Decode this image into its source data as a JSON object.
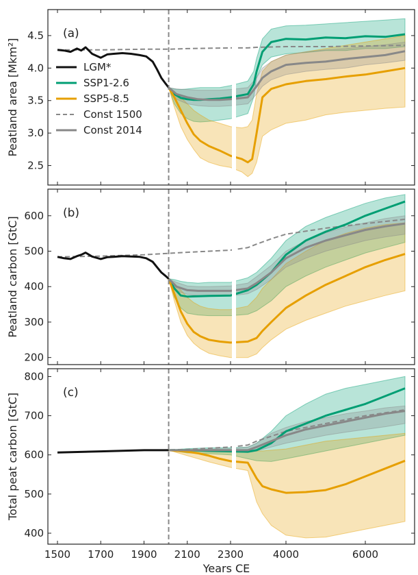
{
  "chart_data": [
    {
      "type": "line",
      "panel_label": "(a)",
      "ylabel": "Peatland area [Mkm²]",
      "ylim": [
        2.2,
        4.9
      ],
      "yticks": [
        2.5,
        3.0,
        3.5,
        4.0,
        4.5
      ],
      "ytick_labels": [
        "2.5",
        "3.0",
        "3.5",
        "4.0",
        "4.5"
      ],
      "legend": {
        "position": "left",
        "entries": [
          {
            "label": "LGM*",
            "color": "#111111",
            "style": "solid"
          },
          {
            "label": "SSP1-2.6",
            "color": "#009e73",
            "style": "solid"
          },
          {
            "label": "SSP5-8.5",
            "color": "#e69f00",
            "style": "solid"
          },
          {
            "label": "Const 1500",
            "color": "#888888",
            "style": "dashed"
          },
          {
            "label": "Const 2014",
            "color": "#888888",
            "style": "solid"
          }
        ]
      },
      "series": [
        {
          "name": "LGM*",
          "color": "#111111",
          "style": "solid",
          "x": [
            1500,
            1530,
            1560,
            1590,
            1610,
            1630,
            1660,
            1700,
            1730,
            1760,
            1800,
            1840,
            1880,
            1910,
            1940,
            1960,
            1980,
            2000,
            2014
          ],
          "y": [
            4.28,
            4.27,
            4.25,
            4.3,
            4.27,
            4.32,
            4.22,
            4.16,
            4.21,
            4.22,
            4.23,
            4.22,
            4.2,
            4.18,
            4.1,
            3.98,
            3.85,
            3.76,
            3.7
          ]
        },
        {
          "name": "Const 1500",
          "color": "#888888",
          "style": "dashed",
          "x": [
            1500,
            1700,
            1900,
            2014,
            2100,
            2300,
            2700,
            3000,
            4000,
            5000,
            6000,
            7000
          ],
          "y": [
            4.28,
            4.28,
            4.29,
            4.29,
            4.3,
            4.31,
            4.31,
            4.32,
            4.33,
            4.33,
            4.34,
            4.35
          ]
        },
        {
          "name": "SSP1-2.6",
          "color": "#009e73",
          "style": "solid",
          "x": [
            2014,
            2040,
            2070,
            2100,
            2130,
            2160,
            2200,
            2250,
            2300,
            2700,
            2900,
            3000,
            3200,
            3500,
            4000,
            4500,
            5000,
            5500,
            6000,
            6500,
            7000
          ],
          "y": [
            3.7,
            3.6,
            3.54,
            3.52,
            3.51,
            3.51,
            3.52,
            3.53,
            3.55,
            3.6,
            3.75,
            3.95,
            4.25,
            4.4,
            4.45,
            4.44,
            4.47,
            4.46,
            4.49,
            4.48,
            4.52
          ],
          "lower": [
            3.7,
            3.45,
            3.3,
            3.22,
            3.18,
            3.17,
            3.18,
            3.2,
            3.22,
            3.3,
            3.55,
            3.85,
            4.05,
            4.17,
            4.22,
            4.24,
            4.27,
            4.27,
            4.3,
            4.3,
            4.33
          ],
          "upper": [
            3.7,
            3.68,
            3.67,
            3.68,
            3.69,
            3.7,
            3.7,
            3.7,
            3.73,
            3.8,
            3.95,
            4.15,
            4.45,
            4.6,
            4.65,
            4.66,
            4.68,
            4.7,
            4.72,
            4.74,
            4.76
          ]
        },
        {
          "name": "SSP5-8.5",
          "color": "#e69f00",
          "style": "solid",
          "x": [
            2014,
            2040,
            2070,
            2100,
            2130,
            2160,
            2200,
            2250,
            2300,
            2500,
            2700,
            2850,
            3000,
            3200,
            3500,
            4000,
            4500,
            5000,
            5500,
            6000,
            6500,
            7000
          ],
          "y": [
            3.7,
            3.55,
            3.35,
            3.15,
            2.98,
            2.88,
            2.8,
            2.73,
            2.65,
            2.6,
            2.55,
            2.6,
            3.0,
            3.55,
            3.68,
            3.75,
            3.8,
            3.83,
            3.87,
            3.9,
            3.95,
            4.0
          ],
          "lower": [
            3.7,
            3.4,
            3.1,
            2.9,
            2.75,
            2.62,
            2.55,
            2.5,
            2.47,
            2.4,
            2.33,
            2.38,
            2.55,
            2.95,
            3.05,
            3.15,
            3.2,
            3.28,
            3.32,
            3.35,
            3.38,
            3.4
          ],
          "upper": [
            3.7,
            3.62,
            3.55,
            3.45,
            3.35,
            3.28,
            3.2,
            3.15,
            3.1,
            3.08,
            3.1,
            3.2,
            3.6,
            3.95,
            4.1,
            4.2,
            4.25,
            4.3,
            4.35,
            4.4,
            4.45,
            4.5
          ]
        },
        {
          "name": "Const 2014",
          "color": "#888888",
          "style": "solid",
          "x": [
            2014,
            2050,
            2100,
            2150,
            2200,
            2250,
            2300,
            2700,
            3000,
            3200,
            3500,
            4000,
            4500,
            5000,
            5500,
            6000,
            6500,
            7000
          ],
          "y": [
            3.7,
            3.6,
            3.55,
            3.52,
            3.51,
            3.51,
            3.52,
            3.55,
            3.72,
            3.85,
            3.95,
            4.05,
            4.08,
            4.1,
            4.14,
            4.17,
            4.2,
            4.26
          ],
          "lower": [
            3.7,
            3.52,
            3.45,
            3.42,
            3.41,
            3.41,
            3.42,
            3.45,
            3.6,
            3.72,
            3.82,
            3.9,
            3.95,
            3.98,
            4.0,
            4.05,
            4.08,
            4.12
          ],
          "upper": [
            3.7,
            3.68,
            3.67,
            3.66,
            3.66,
            3.66,
            3.67,
            3.7,
            3.85,
            4.0,
            4.1,
            4.2,
            4.25,
            4.28,
            4.3,
            4.33,
            4.36,
            4.4
          ]
        }
      ]
    },
    {
      "type": "line",
      "panel_label": "(b)",
      "ylabel": "Peatland carbon [GtC]",
      "ylim": [
        180,
        675
      ],
      "yticks": [
        200,
        300,
        400,
        500,
        600
      ],
      "ytick_labels": [
        "200",
        "300",
        "400",
        "500",
        "600"
      ],
      "series": [
        {
          "name": "LGM*",
          "color": "#111111",
          "style": "solid",
          "x": [
            1500,
            1530,
            1560,
            1590,
            1610,
            1630,
            1660,
            1700,
            1730,
            1760,
            1800,
            1840,
            1880,
            1910,
            1940,
            1960,
            1980,
            2000,
            2014
          ],
          "y": [
            484,
            480,
            478,
            486,
            490,
            496,
            485,
            478,
            483,
            484,
            486,
            485,
            484,
            480,
            470,
            455,
            440,
            430,
            422
          ]
        },
        {
          "name": "Const 1500",
          "color": "#888888",
          "style": "dashed",
          "x": [
            1500,
            1700,
            1900,
            2014,
            2100,
            2300,
            2700,
            3000,
            3500,
            4000,
            5000,
            6000,
            7000
          ],
          "y": [
            484,
            486,
            490,
            494,
            497,
            503,
            510,
            520,
            535,
            548,
            565,
            578,
            590
          ]
        },
        {
          "name": "SSP1-2.6",
          "color": "#009e73",
          "style": "solid",
          "x": [
            2014,
            2040,
            2070,
            2100,
            2150,
            2200,
            2300,
            2700,
            3000,
            3500,
            4000,
            4500,
            5000,
            5500,
            6000,
            6500,
            7000
          ],
          "y": [
            422,
            395,
            375,
            372,
            373,
            374,
            375,
            390,
            405,
            440,
            490,
            530,
            555,
            575,
            600,
            620,
            640
          ],
          "lower": [
            422,
            370,
            340,
            325,
            320,
            318,
            318,
            322,
            332,
            360,
            400,
            430,
            455,
            475,
            495,
            510,
            525
          ],
          "upper": [
            422,
            420,
            415,
            412,
            410,
            412,
            412,
            425,
            440,
            480,
            530,
            570,
            595,
            615,
            635,
            650,
            660
          ]
        },
        {
          "name": "SSP5-8.5",
          "color": "#e69f00",
          "style": "solid",
          "x": [
            2014,
            2040,
            2070,
            2100,
            2130,
            2160,
            2200,
            2250,
            2300,
            2700,
            3000,
            3200,
            3500,
            4000,
            4500,
            5000,
            5500,
            6000,
            6500,
            7000
          ],
          "y": [
            422,
            380,
            330,
            295,
            272,
            260,
            250,
            245,
            242,
            245,
            255,
            275,
            300,
            340,
            375,
            405,
            430,
            455,
            475,
            492
          ],
          "lower": [
            422,
            360,
            300,
            262,
            240,
            225,
            212,
            205,
            200,
            200,
            210,
            228,
            250,
            280,
            305,
            325,
            345,
            360,
            375,
            388
          ],
          "upper": [
            422,
            410,
            390,
            370,
            355,
            345,
            338,
            335,
            335,
            345,
            370,
            395,
            420,
            465,
            500,
            530,
            550,
            565,
            575,
            580
          ]
        },
        {
          "name": "Const 2014",
          "color": "#888888",
          "style": "solid",
          "x": [
            2014,
            2050,
            2100,
            2150,
            2200,
            2300,
            2700,
            3000,
            3500,
            4000,
            4500,
            5000,
            5500,
            6000,
            6500,
            7000
          ],
          "y": [
            422,
            400,
            390,
            388,
            388,
            388,
            395,
            410,
            440,
            480,
            510,
            530,
            545,
            560,
            570,
            578
          ],
          "lower": [
            422,
            388,
            378,
            375,
            374,
            374,
            380,
            392,
            420,
            455,
            480,
            500,
            515,
            530,
            540,
            548
          ],
          "upper": [
            422,
            412,
            402,
            400,
            400,
            402,
            410,
            428,
            460,
            500,
            530,
            552,
            568,
            580,
            592,
            600
          ]
        }
      ]
    },
    {
      "type": "line",
      "panel_label": "(c)",
      "ylabel": "Total peat carbon [GtC]",
      "ylim": [
        372,
        820
      ],
      "yticks": [
        400,
        500,
        600,
        700,
        800
      ],
      "ytick_labels": [
        "400",
        "500",
        "600",
        "700",
        "800"
      ],
      "xlabel": "Years CE",
      "xticks": [
        1500,
        1700,
        1900,
        2100,
        2300,
        4000,
        6000
      ],
      "xtick_labels": [
        "1500",
        "1700",
        "1900",
        "2100",
        "2300",
        "4000",
        "6000"
      ],
      "xscale": "broken axis at 2300 (linear 1500–2300 left, linear 2300–7000 right)",
      "vertical_marker": {
        "x": 2014,
        "style": "dashed",
        "color": "#888888"
      },
      "series": [
        {
          "name": "LGM*",
          "color": "#111111",
          "style": "solid",
          "x": [
            1500,
            1700,
            1900,
            2014
          ],
          "y": [
            606,
            609,
            612,
            612
          ]
        },
        {
          "name": "Const 1500",
          "color": "#888888",
          "style": "dashed",
          "x": [
            1500,
            1700,
            1900,
            2014,
            2100,
            2300,
            2700,
            3000,
            4000,
            5000,
            6000,
            7000
          ],
          "y": [
            606,
            609,
            612,
            613,
            614,
            620,
            625,
            635,
            660,
            680,
            700,
            715
          ]
        },
        {
          "name": "SSP1-2.6",
          "color": "#009e73",
          "style": "solid",
          "x": [
            2014,
            2100,
            2200,
            2300,
            2700,
            3000,
            3500,
            4000,
            4500,
            5000,
            5500,
            6000,
            6500,
            7000
          ],
          "y": [
            612,
            612,
            610,
            609,
            608,
            612,
            630,
            660,
            680,
            700,
            715,
            730,
            750,
            770
          ],
          "lower": [
            612,
            605,
            603,
            600,
            590,
            585,
            583,
            590,
            600,
            610,
            620,
            630,
            640,
            650
          ],
          "upper": [
            612,
            616,
            618,
            618,
            620,
            630,
            660,
            700,
            730,
            755,
            770,
            780,
            790,
            800
          ]
        },
        {
          "name": "SSP5-8.5",
          "color": "#e69f00",
          "style": "solid",
          "x": [
            2014,
            2100,
            2150,
            2200,
            2250,
            2300,
            2700,
            3000,
            3200,
            3500,
            4000,
            4500,
            5000,
            5500,
            6000,
            6500,
            7000
          ],
          "y": [
            612,
            608,
            604,
            598,
            590,
            584,
            580,
            540,
            520,
            512,
            503,
            505,
            510,
            525,
            545,
            565,
            585
          ],
          "lower": [
            612,
            598,
            590,
            582,
            575,
            568,
            560,
            480,
            450,
            420,
            395,
            388,
            390,
            400,
            410,
            420,
            430
          ],
          "upper": [
            612,
            612,
            612,
            612,
            612,
            612,
            612,
            610,
            610,
            612,
            615,
            625,
            635,
            640,
            645,
            650,
            655
          ]
        },
        {
          "name": "Const 2014",
          "color": "#888888",
          "style": "solid",
          "x": [
            2014,
            2100,
            2300,
            2700,
            3000,
            3500,
            4000,
            4500,
            5000,
            5500,
            6000,
            6500,
            7000
          ],
          "y": [
            612,
            612,
            612,
            612,
            620,
            635,
            650,
            665,
            675,
            685,
            695,
            705,
            712
          ],
          "lower": [
            612,
            610,
            608,
            606,
            610,
            620,
            630,
            640,
            650,
            658,
            665,
            672,
            680
          ],
          "upper": [
            612,
            614,
            616,
            620,
            630,
            655,
            670,
            685,
            695,
            705,
            712,
            720,
            725
          ]
        }
      ]
    }
  ]
}
